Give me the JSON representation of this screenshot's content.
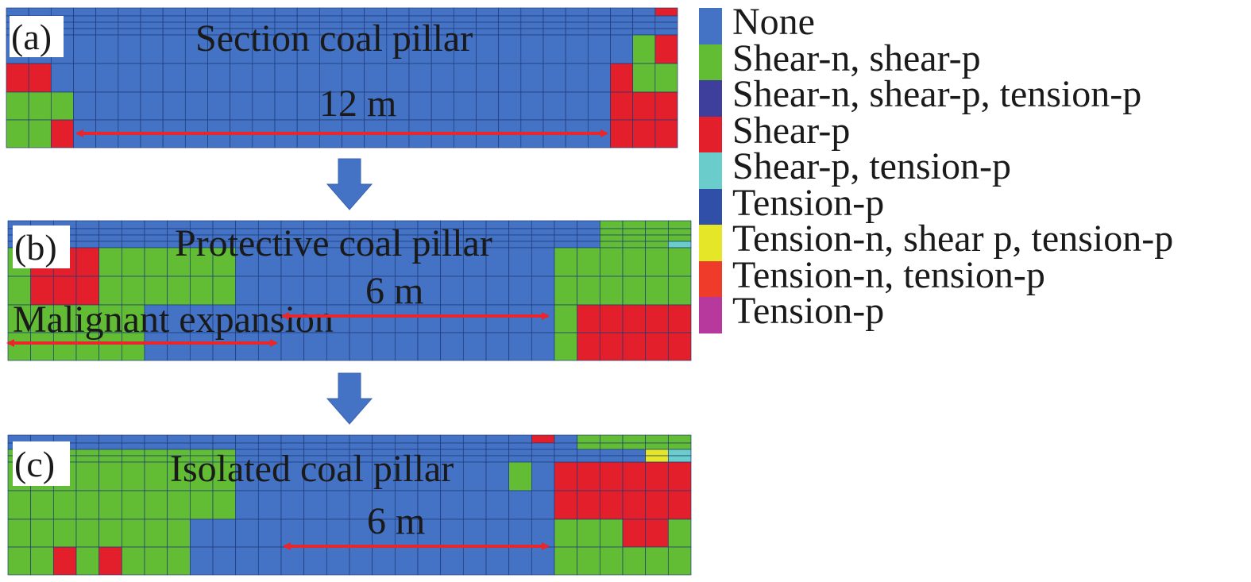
{
  "colors": {
    "none": "#4472C4",
    "shear_n_shear_p": "#62BD35",
    "shear_n_shear_p_tension_p": "#3E3F9D",
    "shear_p": "#E21F2A",
    "shear_p_tension_p": "#6ACCCB",
    "tension_p_blue": "#2F4FA8",
    "tension_n_shear_p_tension_p": "#E6E628",
    "tension_n_tension_p": "#EE3B2A",
    "tension_p_magenta": "#B8399E",
    "arrow": "#E8262B",
    "flow_arrow": "#4472C4",
    "grid_line": "#1F3A78"
  },
  "panels": [
    {
      "tag": "(a)",
      "title": "Section coal pillar",
      "width_label": "12 m"
    },
    {
      "tag": "(b)",
      "title": "Protective coal pillar",
      "width_label": "6 m",
      "extra_label": "Malignant expansion"
    },
    {
      "tag": "(c)",
      "title": "Isolated coal pillar",
      "width_label": "6 m"
    }
  ],
  "legend": [
    {
      "label": "None",
      "color": "#4472C4"
    },
    {
      "label": "Shear-n, shear-p",
      "color": "#62BD35"
    },
    {
      "label": "Shear-n, shear-p, tension-p",
      "color": "#3E3F9D"
    },
    {
      "label": "Shear-p",
      "color": "#E21F2A"
    },
    {
      "label": "Shear-p, tension-p",
      "color": "#6ACCCB"
    },
    {
      "label": "Tension-p",
      "color": "#2F4FA8"
    },
    {
      "label": "Tension-n, shear p, tension-p",
      "color": "#E6E628"
    },
    {
      "label": "Tension-n, tension-p",
      "color": "#EE3B2A"
    },
    {
      "label": "Tension-p",
      "color": "#B8399E"
    }
  ]
}
